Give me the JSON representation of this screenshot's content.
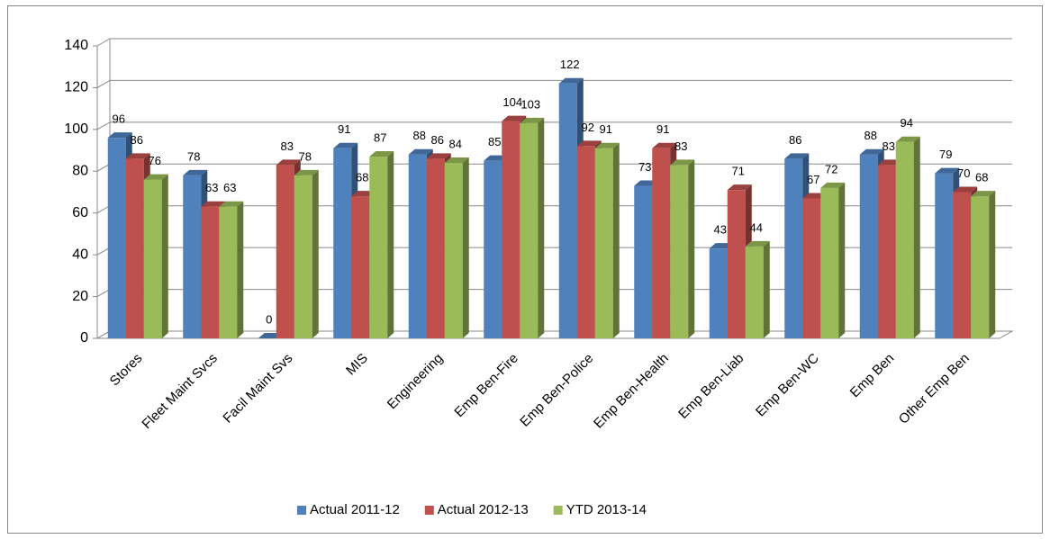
{
  "chart_data": {
    "type": "bar3d",
    "categories": [
      "Stores",
      "Fleet Maint Svcs",
      "Facil Maint Svs",
      "MIS",
      "Engineering",
      "Emp Ben-Fire",
      "Emp Ben-Police",
      "Emp Ben-Health",
      "Emp Ben-Liab",
      "Emp Ben-WC",
      "Emp Ben",
      "Other Emp Ben"
    ],
    "series": [
      {
        "name": "Actual 2011-12",
        "color": "#4f81bd",
        "values": [
          96,
          78,
          0,
          91,
          88,
          85,
          122,
          73,
          43,
          86,
          88,
          79
        ]
      },
      {
        "name": "Actual 2012-13",
        "color": "#c0504d",
        "values": [
          86,
          63,
          83,
          68,
          86,
          104,
          92,
          91,
          71,
          67,
          83,
          70
        ]
      },
      {
        "name": "YTD 2013-14",
        "color": "#9bbb59",
        "values": [
          76,
          63,
          78,
          87,
          84,
          103,
          91,
          83,
          44,
          72,
          94,
          68
        ]
      }
    ],
    "ylim": [
      0,
      140
    ],
    "yticks": [
      0,
      20,
      40,
      60,
      80,
      100,
      120,
      140
    ],
    "grid": true,
    "legend": "bottom"
  }
}
